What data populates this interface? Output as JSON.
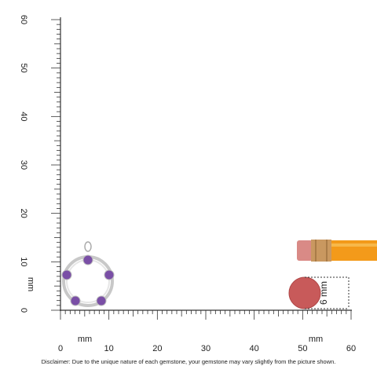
{
  "vertical_ruler": {
    "labels": [
      "0",
      "10",
      "20",
      "30",
      "40",
      "50",
      "60"
    ],
    "unit": "mm"
  },
  "horizontal_ruler": {
    "labels": [
      "0",
      "10",
      "20",
      "30",
      "40",
      "50",
      "60"
    ],
    "units": [
      "mm",
      "mm"
    ]
  },
  "size_label": "6 mm",
  "disclaimer": "Disclaimer: Due to the unique nature of each gemstone, your gemstone may vary slightly from the picture shown."
}
